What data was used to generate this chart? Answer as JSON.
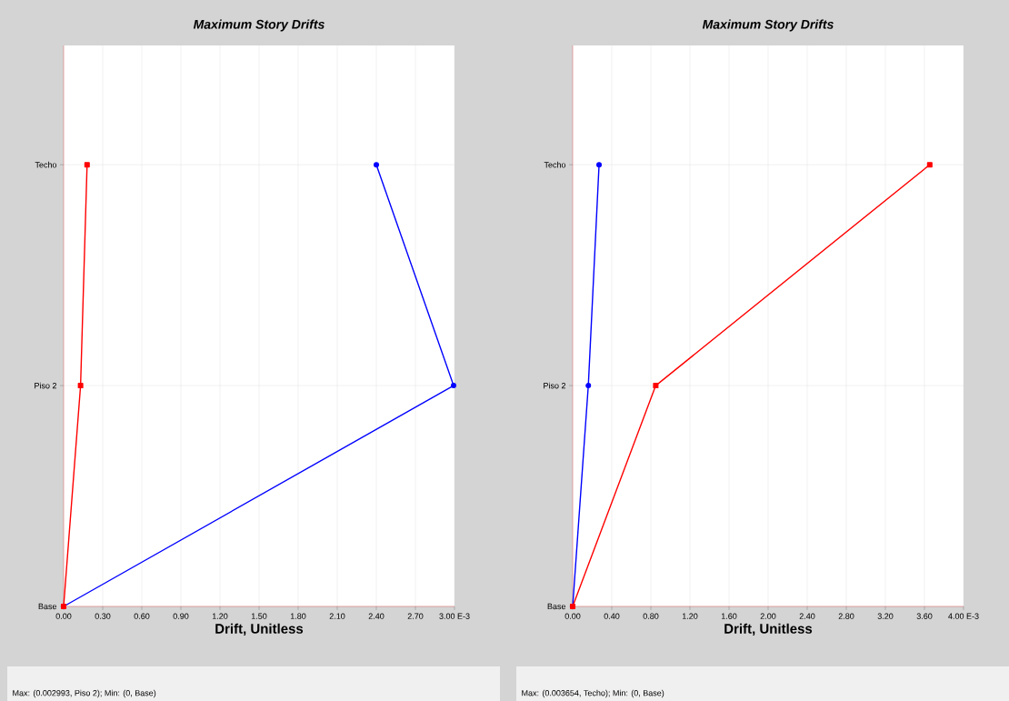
{
  "chart_data": [
    {
      "type": "line",
      "title": "Maximum Story Drifts",
      "xlabel": "Drift, Unitless",
      "orientation": "horizontal",
      "grid": true,
      "categories": [
        "Techo",
        "Piso 2",
        "Base"
      ],
      "series": [
        {
          "color": "#0000ff",
          "marker": "circle",
          "values": [
            2.4,
            2.993,
            0
          ]
        },
        {
          "color": "#ff0000",
          "marker": "square",
          "values": [
            0.18,
            0.13,
            0
          ]
        }
      ],
      "xlim": [
        0,
        3
      ],
      "xticks": [
        {
          "value": 0,
          "label": "0.00"
        },
        {
          "value": 0.3,
          "label": "0.30"
        },
        {
          "value": 0.6,
          "label": "0.60"
        },
        {
          "value": 0.9,
          "label": "0.90"
        },
        {
          "value": 1.2,
          "label": "1.20"
        },
        {
          "value": 1.5,
          "label": "1.50"
        },
        {
          "value": 1.8,
          "label": "1.80"
        },
        {
          "value": 2.1,
          "label": "2.10"
        },
        {
          "value": 2.4,
          "label": "2.40"
        },
        {
          "value": 2.7,
          "label": "2.70"
        },
        {
          "value": 3,
          "label": "3.00 E-3"
        }
      ],
      "annotations": [
        "Max: (0.002993, Piso 2);   Min: (0, Base)"
      ]
    },
    {
      "type": "line",
      "title": "Maximum Story Drifts",
      "xlabel": "Drift, Unitless",
      "orientation": "horizontal",
      "grid": true,
      "categories": [
        "Techo",
        "Piso 2",
        "Base"
      ],
      "series": [
        {
          "color": "#0000ff",
          "marker": "circle",
          "values": [
            0.27,
            0.16,
            0
          ]
        },
        {
          "color": "#ff0000",
          "marker": "square",
          "values": [
            3.654,
            0.85,
            0
          ]
        }
      ],
      "xlim": [
        0,
        4
      ],
      "xticks": [
        {
          "value": 0,
          "label": "0.00"
        },
        {
          "value": 0.4,
          "label": "0.40"
        },
        {
          "value": 0.8,
          "label": "0.80"
        },
        {
          "value": 1.2,
          "label": "1.20"
        },
        {
          "value": 1.6,
          "label": "1.60"
        },
        {
          "value": 2.0,
          "label": "2.00"
        },
        {
          "value": 2.4,
          "label": "2.40"
        },
        {
          "value": 2.8,
          "label": "2.80"
        },
        {
          "value": 3.2,
          "label": "3.20"
        },
        {
          "value": 3.6,
          "label": "3.60"
        },
        {
          "value": 4,
          "label": "4.00 E-3"
        }
      ],
      "annotations": [
        "Max: (0.003654, Techo);   Min: (0, Base)"
      ]
    }
  ]
}
